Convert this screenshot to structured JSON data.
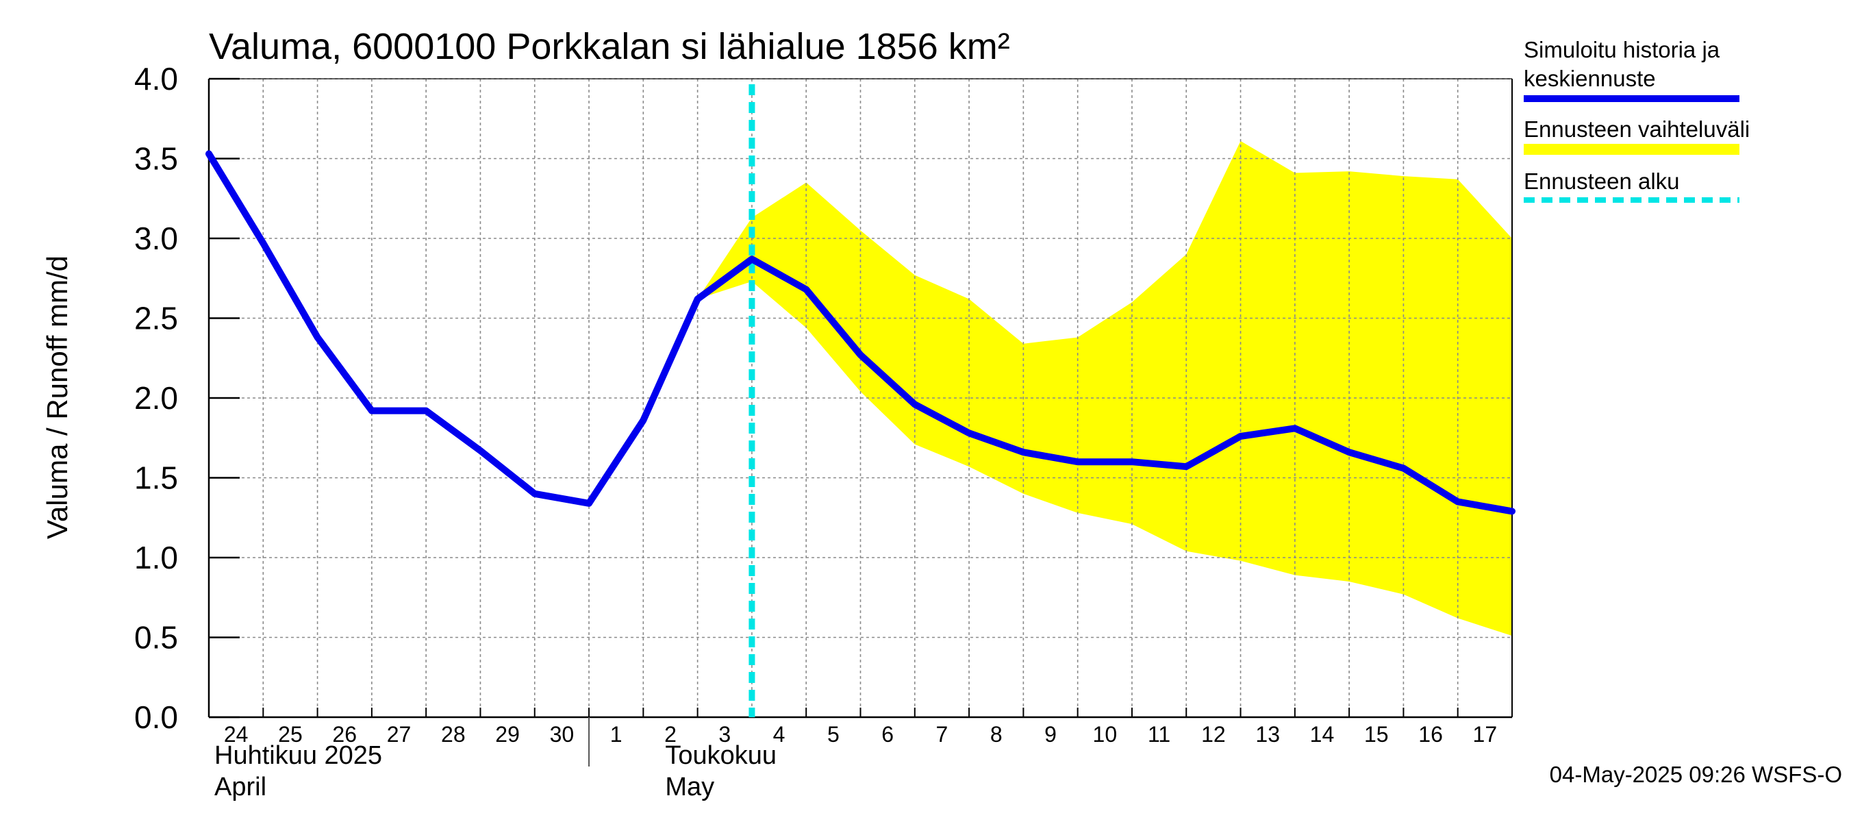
{
  "chart_data": {
    "type": "line",
    "title": "Valuma, 6000100 Porkkalan si lähialue 1856 km²",
    "ylabel": "Valuma / Runoff     mm/d",
    "ylim": [
      0,
      4
    ],
    "yticks": [
      "0.0",
      "0.5",
      "1.0",
      "1.5",
      "2.0",
      "2.5",
      "3.0",
      "3.5",
      "4.0"
    ],
    "ytick_values": [
      0,
      0.5,
      1,
      1.5,
      2,
      2.5,
      3,
      3.5,
      4
    ],
    "xticks": [
      "24",
      "25",
      "26",
      "27",
      "28",
      "29",
      "30",
      "1",
      "2",
      "3",
      "4",
      "5",
      "6",
      "7",
      "8",
      "9",
      "10",
      "11",
      "12",
      "13",
      "14",
      "15",
      "16",
      "17"
    ],
    "months": [
      {
        "fi": "Huhtikuu  2025",
        "en": "April",
        "start_index": 0
      },
      {
        "fi": "Toukokuu",
        "en": "May",
        "start_index": 7
      }
    ],
    "grid": true,
    "forecast_start_index": 10,
    "series": [
      {
        "name": "Simuloitu historia ja keskiennuste",
        "color": "#0000ee",
        "values": [
          3.53,
          2.97,
          2.38,
          1.92,
          1.92,
          1.67,
          1.4,
          1.34,
          1.86,
          2.62,
          2.87,
          2.68,
          2.27,
          1.96,
          1.78,
          1.66,
          1.6,
          1.6,
          1.57,
          1.76,
          1.81,
          1.66,
          1.56,
          1.35,
          1.29
        ]
      }
    ],
    "band": {
      "name": "Ennusteen vaihteluväli",
      "color": "#ffff00",
      "start_index": 9,
      "upper": [
        2.62,
        3.13,
        3.35,
        3.05,
        2.77,
        2.62,
        2.34,
        2.38,
        2.6,
        2.9,
        3.61,
        3.41,
        3.42,
        3.39,
        3.37,
        3.0
      ],
      "lower": [
        2.62,
        2.73,
        2.44,
        2.04,
        1.71,
        1.57,
        1.4,
        1.28,
        1.21,
        1.04,
        0.98,
        0.89,
        0.85,
        0.77,
        0.62,
        0.51
      ]
    },
    "forecast_line": {
      "name": "Ennusteen alku",
      "color": "#00e5e5"
    },
    "legend": {
      "position": "right",
      "entries": [
        {
          "lines": [
            "Simuloitu historia ja",
            "keskiennuste"
          ],
          "color": "#0000ee",
          "style": "solid"
        },
        {
          "lines": [
            "Ennusteen vaihteluväli"
          ],
          "color": "#ffff00",
          "style": "band"
        },
        {
          "lines": [
            "Ennusteen alku"
          ],
          "color": "#00e5e5",
          "style": "dashed"
        }
      ]
    },
    "timestamp": "04-May-2025 09:26 WSFS-O"
  }
}
